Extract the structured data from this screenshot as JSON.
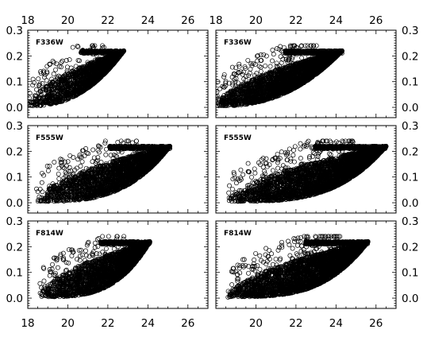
{
  "chart_data": {
    "type": "scatter",
    "layout": "3x2 grid of scatter panels",
    "marker": "open circle",
    "x_ticks_top": [
      "18",
      "20",
      "22",
      "24",
      "26"
    ],
    "x_ticks_bottom_left": [
      "18",
      "20",
      "22",
      "24",
      "26"
    ],
    "x_ticks_bottom_right": [
      "20",
      "22",
      "24",
      "26"
    ],
    "y_ticks": [
      "0.0",
      "0.1",
      "0.2",
      "0.3"
    ],
    "panels": [
      {
        "label": "F336W",
        "column": "left",
        "row": 0,
        "xlim": [
          18,
          27
        ],
        "ylim": [
          -0.04,
          0.3
        ],
        "envelope": {
          "x_start": 18.0,
          "x_end": 22.8,
          "y_cap": 0.22,
          "curvature": 2.4
        },
        "density": 0.95
      },
      {
        "label": "F336W",
        "column": "right",
        "row": 0,
        "xlim": [
          18,
          27
        ],
        "ylim": [
          -0.04,
          0.3
        ],
        "envelope": {
          "x_start": 18.0,
          "x_end": 24.3,
          "y_cap": 0.22,
          "curvature": 2.4
        },
        "density": 1.8
      },
      {
        "label": "F555W",
        "column": "left",
        "row": 1,
        "xlim": [
          18,
          27
        ],
        "ylim": [
          -0.04,
          0.3
        ],
        "envelope": {
          "x_start": 18.4,
          "x_end": 25.1,
          "y_cap": 0.22,
          "curvature": 3.2
        },
        "density": 1.4
      },
      {
        "label": "F555W",
        "column": "right",
        "row": 1,
        "xlim": [
          18,
          27
        ],
        "ylim": [
          -0.04,
          0.3
        ],
        "envelope": {
          "x_start": 18.6,
          "x_end": 26.5,
          "y_cap": 0.22,
          "curvature": 3.4
        },
        "density": 2.0
      },
      {
        "label": "F814W",
        "column": "left",
        "row": 2,
        "xlim": [
          18,
          27
        ],
        "ylim": [
          -0.04,
          0.3
        ],
        "envelope": {
          "x_start": 18.6,
          "x_end": 24.1,
          "y_cap": 0.22,
          "curvature": 3.4
        },
        "density": 1.4
      },
      {
        "label": "F814W",
        "column": "right",
        "row": 2,
        "xlim": [
          18,
          27
        ],
        "ylim": [
          -0.04,
          0.3
        ],
        "envelope": {
          "x_start": 18.6,
          "x_end": 25.6,
          "y_cap": 0.22,
          "curvature": 3.4
        },
        "density": 2.0
      }
    ]
  }
}
